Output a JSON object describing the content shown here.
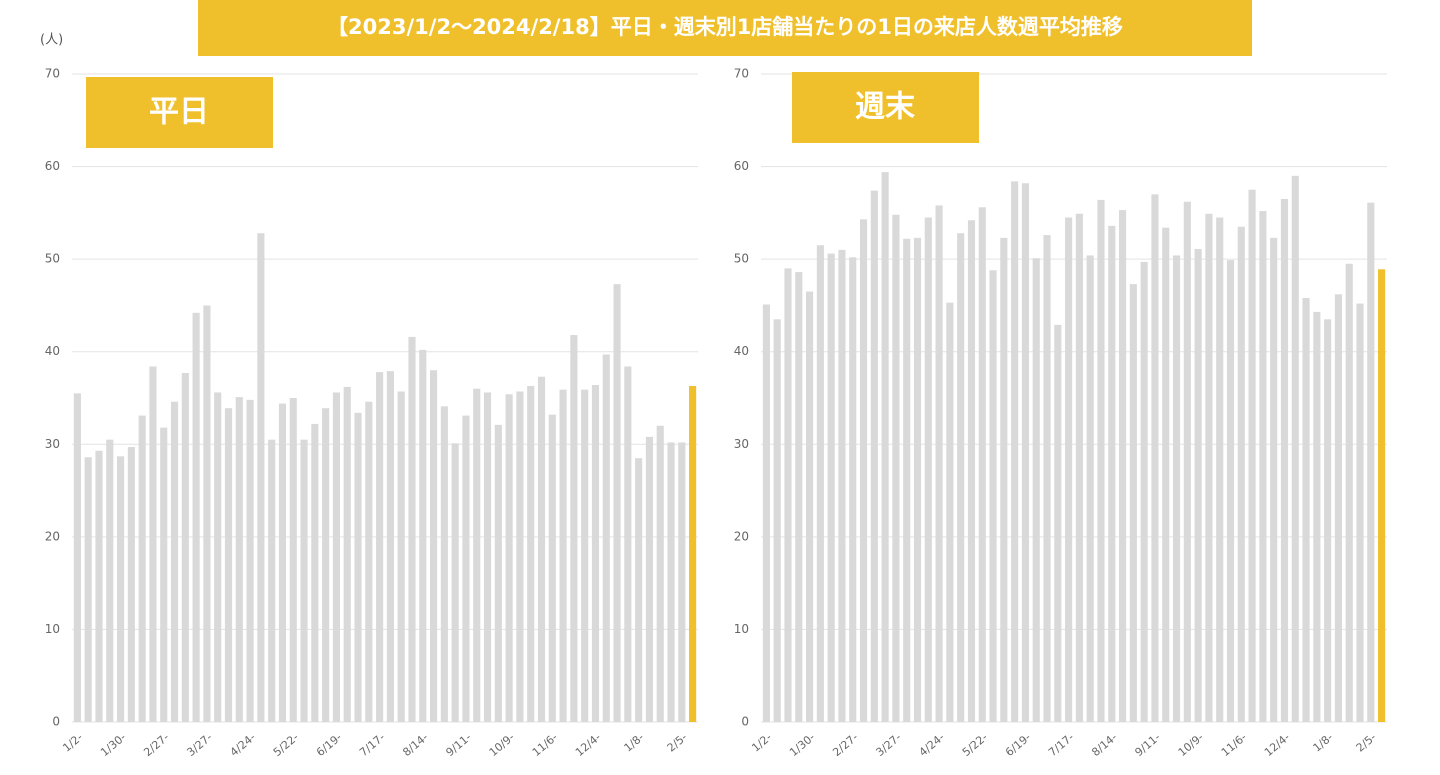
{
  "title": "【2023/1/2～2024/2/18】平日・週末別1店舗当たりの1日の来店人数週平均推移",
  "y_unit": "(人)",
  "chart_data": [
    {
      "type": "bar",
      "title": "平日",
      "categories": [
        "1/2-",
        null,
        null,
        null,
        "1/30-",
        null,
        null,
        null,
        "2/27-",
        null,
        null,
        null,
        "3/27-",
        null,
        null,
        null,
        "4/24-",
        null,
        null,
        null,
        "5/22-",
        null,
        null,
        null,
        "6/19-",
        null,
        null,
        null,
        "7/17-",
        null,
        null,
        null,
        "8/14-",
        null,
        null,
        null,
        "9/11-",
        null,
        null,
        null,
        "10/9-",
        null,
        null,
        null,
        "11/6-",
        null,
        null,
        null,
        "12/4-",
        null,
        null,
        null,
        "1/8-",
        null,
        null,
        null,
        "2/5-",
        null
      ],
      "values": [
        35.5,
        28.6,
        29.3,
        30.5,
        28.7,
        29.7,
        33.1,
        38.4,
        31.8,
        34.6,
        37.7,
        44.2,
        45.0,
        35.6,
        33.9,
        35.1,
        34.8,
        52.8,
        30.5,
        34.4,
        35.0,
        30.5,
        32.2,
        33.9,
        35.6,
        36.2,
        33.4,
        34.6,
        37.8,
        37.9,
        35.7,
        41.6,
        40.2,
        38.0,
        34.1,
        30.1,
        33.1,
        36.0,
        35.6,
        32.1,
        35.4,
        35.7,
        36.3,
        37.3,
        33.2,
        35.9,
        41.8,
        35.9,
        36.4,
        39.7,
        47.3,
        38.4,
        28.5,
        30.8,
        32.0,
        30.2,
        30.2,
        36.3
      ],
      "colors": [
        "#d9d9d9",
        "#d9d9d9",
        "#d9d9d9",
        "#d9d9d9",
        "#d9d9d9",
        "#d9d9d9",
        "#d9d9d9",
        "#d9d9d9",
        "#d9d9d9",
        "#d9d9d9",
        "#d9d9d9",
        "#d9d9d9",
        "#d9d9d9",
        "#d9d9d9",
        "#d9d9d9",
        "#d9d9d9",
        "#d9d9d9",
        "#d9d9d9",
        "#d9d9d9",
        "#d9d9d9",
        "#d9d9d9",
        "#d9d9d9",
        "#d9d9d9",
        "#d9d9d9",
        "#d9d9d9",
        "#d9d9d9",
        "#d9d9d9",
        "#d9d9d9",
        "#d9d9d9",
        "#d9d9d9",
        "#d9d9d9",
        "#d9d9d9",
        "#d9d9d9",
        "#d9d9d9",
        "#d9d9d9",
        "#d9d9d9",
        "#d9d9d9",
        "#d9d9d9",
        "#d9d9d9",
        "#d9d9d9",
        "#d9d9d9",
        "#d9d9d9",
        "#d9d9d9",
        "#d9d9d9",
        "#d9d9d9",
        "#d9d9d9",
        "#d9d9d9",
        "#d9d9d9",
        "#d9d9d9",
        "#d9d9d9",
        "#d9d9d9",
        "#d9d9d9",
        "#d9d9d9",
        "#d9d9d9",
        "#d9d9d9",
        "#d9d9d9",
        "#d9d9d9",
        "#f0c02c"
      ],
      "ylim": [
        0,
        70
      ],
      "yticks": [
        0,
        10,
        20,
        30,
        40,
        50,
        60,
        70
      ],
      "grid": true
    },
    {
      "type": "bar",
      "title": "週末",
      "categories": [
        "1/2-",
        null,
        null,
        null,
        "1/30-",
        null,
        null,
        null,
        "2/27-",
        null,
        null,
        null,
        "3/27-",
        null,
        null,
        null,
        "4/24-",
        null,
        null,
        null,
        "5/22-",
        null,
        null,
        null,
        "6/19-",
        null,
        null,
        null,
        "7/17-",
        null,
        null,
        null,
        "8/14-",
        null,
        null,
        null,
        "9/11-",
        null,
        null,
        null,
        "10/9-",
        null,
        null,
        null,
        "11/6-",
        null,
        null,
        null,
        "12/4-",
        null,
        null,
        null,
        "1/8-",
        null,
        null,
        null,
        "2/5-",
        null
      ],
      "values": [
        45.1,
        43.5,
        49.0,
        48.6,
        46.5,
        51.5,
        50.6,
        51.0,
        50.2,
        54.3,
        57.4,
        59.4,
        54.8,
        52.2,
        52.3,
        54.5,
        55.8,
        45.3,
        52.8,
        54.2,
        55.6,
        48.8,
        52.3,
        58.4,
        58.2,
        50.1,
        52.6,
        42.9,
        54.5,
        54.9,
        50.4,
        56.4,
        53.6,
        55.3,
        47.3,
        49.7,
        57.0,
        53.4,
        50.4,
        56.2,
        51.1,
        54.9,
        54.5,
        49.9,
        53.5,
        57.5,
        55.2,
        52.3,
        56.5,
        59.0,
        45.8,
        44.3,
        43.5,
        46.2,
        49.5,
        45.2,
        56.1,
        48.9
      ],
      "colors": [
        "#d9d9d9",
        "#d9d9d9",
        "#d9d9d9",
        "#d9d9d9",
        "#d9d9d9",
        "#d9d9d9",
        "#d9d9d9",
        "#d9d9d9",
        "#d9d9d9",
        "#d9d9d9",
        "#d9d9d9",
        "#d9d9d9",
        "#d9d9d9",
        "#d9d9d9",
        "#d9d9d9",
        "#d9d9d9",
        "#d9d9d9",
        "#d9d9d9",
        "#d9d9d9",
        "#d9d9d9",
        "#d9d9d9",
        "#d9d9d9",
        "#d9d9d9",
        "#d9d9d9",
        "#d9d9d9",
        "#d9d9d9",
        "#d9d9d9",
        "#d9d9d9",
        "#d9d9d9",
        "#d9d9d9",
        "#d9d9d9",
        "#d9d9d9",
        "#d9d9d9",
        "#d9d9d9",
        "#d9d9d9",
        "#d9d9d9",
        "#d9d9d9",
        "#d9d9d9",
        "#d9d9d9",
        "#d9d9d9",
        "#d9d9d9",
        "#d9d9d9",
        "#d9d9d9",
        "#d9d9d9",
        "#d9d9d9",
        "#d9d9d9",
        "#d9d9d9",
        "#d9d9d9",
        "#d9d9d9",
        "#d9d9d9",
        "#d9d9d9",
        "#d9d9d9",
        "#d9d9d9",
        "#d9d9d9",
        "#d9d9d9",
        "#d9d9d9",
        "#d9d9d9",
        "#f0c02c"
      ],
      "ylim": [
        0,
        70
      ],
      "yticks": [
        0,
        10,
        20,
        30,
        40,
        50,
        60,
        70
      ],
      "grid": true
    }
  ]
}
